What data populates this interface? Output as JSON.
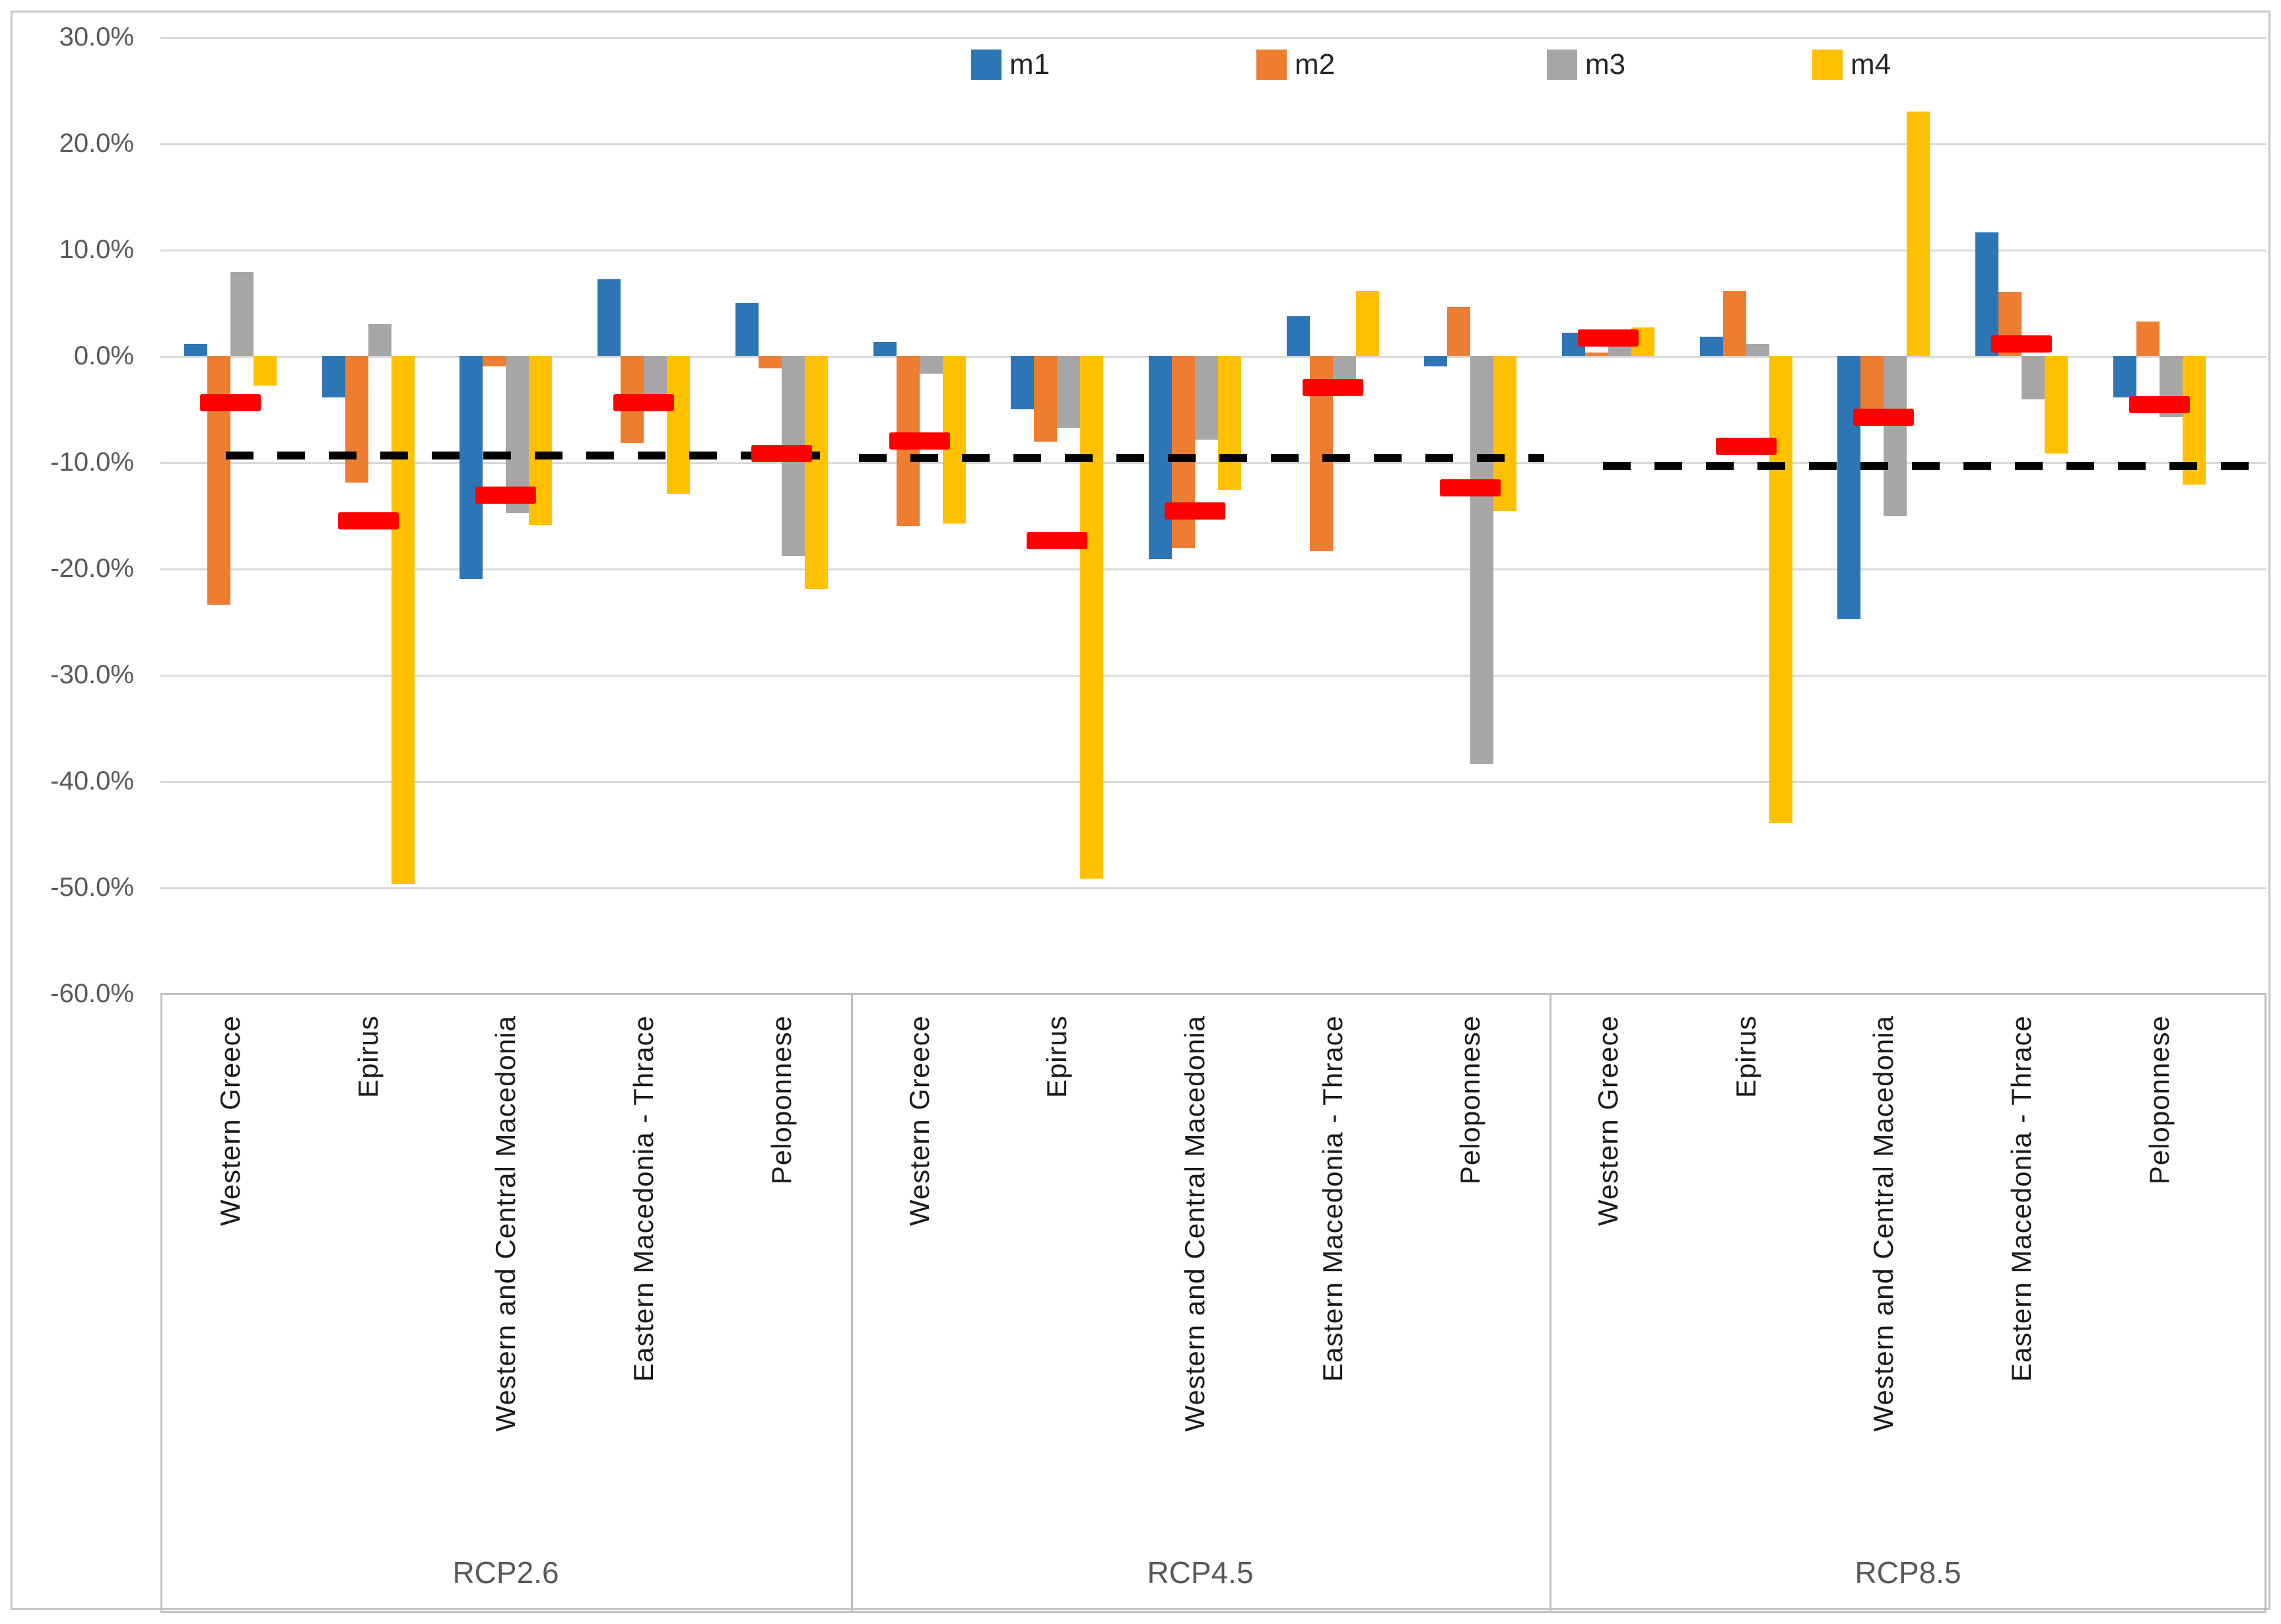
{
  "chart_data": {
    "type": "bar",
    "title": "",
    "xlabel": "",
    "ylabel": "",
    "grid": true,
    "legend_position": "top",
    "y_axis": {
      "min": -60,
      "max": 30,
      "tick_step": 10,
      "tick_labels": [
        "30.0%",
        "20.0%",
        "10.0%",
        "0.0%",
        "-10.0%",
        "-20.0%",
        "-30.0%",
        "-40.0%",
        "-50.0%",
        "-60.0%"
      ]
    },
    "series_names": [
      "m1",
      "m2",
      "m3",
      "m4"
    ],
    "colors": {
      "m1": "#2E75B6",
      "m2": "#ED7D31",
      "m3": "#A6A6A6",
      "m4": "#FFC000",
      "marker": "#FF0000",
      "dashed_line": "#000000",
      "gridline": "#D9D9D9",
      "box_border": "#BFBFBF",
      "axis_text": "#595959",
      "category_text": "#1A1A1A"
    },
    "units": "percent",
    "panels": [
      {
        "label": "RCP2.6",
        "dashed_line_value": -9.4,
        "groups": [
          {
            "region": "Western Greece",
            "values": {
              "m1": 1.1,
              "m2": -23.4,
              "m3": 7.9,
              "m4": -2.8
            },
            "marker": -4.4
          },
          {
            "region": "Epirus",
            "values": {
              "m1": -3.9,
              "m2": -11.9,
              "m3": 3.0,
              "m4": -49.7
            },
            "marker": -15.5
          },
          {
            "region": "Western and Central Macedonia",
            "values": {
              "m1": -21.0,
              "m2": -1.0,
              "m3": -14.8,
              "m4": -15.9
            },
            "marker": -13.1
          },
          {
            "region": "Eastern Macedonia - Thrace",
            "values": {
              "m1": 7.2,
              "m2": -8.2,
              "m3": -3.6,
              "m4": -13.0
            },
            "marker": -4.4
          },
          {
            "region": "Peloponnese",
            "values": {
              "m1": 5.0,
              "m2": -1.2,
              "m3": -18.8,
              "m4": -21.9
            },
            "marker": -9.2
          }
        ]
      },
      {
        "label": "RCP4.5",
        "dashed_line_value": -9.6,
        "groups": [
          {
            "region": "Western Greece",
            "values": {
              "m1": 1.3,
              "m2": -16.0,
              "m3": -1.7,
              "m4": -15.8
            },
            "marker": -8.0
          },
          {
            "region": "Epirus",
            "values": {
              "m1": -5.0,
              "m2": -8.1,
              "m3": -6.8,
              "m4": -49.2
            },
            "marker": -17.4
          },
          {
            "region": "Western and Central Macedonia",
            "values": {
              "m1": -19.1,
              "m2": -18.1,
              "m3": -7.9,
              "m4": -12.6
            },
            "marker": -14.6
          },
          {
            "region": "Eastern Macedonia - Thrace",
            "values": {
              "m1": 3.7,
              "m2": -18.4,
              "m3": -2.2,
              "m4": 6.1
            },
            "marker": -3.0
          },
          {
            "region": "Peloponnese",
            "values": {
              "m1": -1.0,
              "m2": 4.6,
              "m3": -38.4,
              "m4": -14.6
            },
            "marker": -12.4
          }
        ]
      },
      {
        "label": "RCP8.5",
        "dashed_line_value": -10.4,
        "groups": [
          {
            "region": "Western Greece",
            "values": {
              "m1": 2.2,
              "m2": 0.3,
              "m3": 1.0,
              "m4": 2.7
            },
            "marker": 1.7
          },
          {
            "region": "Epirus",
            "values": {
              "m1": 1.8,
              "m2": 6.1,
              "m3": 1.1,
              "m4": -44.0
            },
            "marker": -8.5
          },
          {
            "region": "Western and Central Macedonia",
            "values": {
              "m1": -24.8,
              "m2": -5.3,
              "m3": -15.1,
              "m4": 23.0
            },
            "marker": -5.8
          },
          {
            "region": "Eastern Macedonia - Thrace",
            "values": {
              "m1": 11.6,
              "m2": 6.0,
              "m3": -4.1,
              "m4": -9.2
            },
            "marker": 1.1
          },
          {
            "region": "Peloponnese",
            "values": {
              "m1": -3.9,
              "m2": 3.2,
              "m3": -5.8,
              "m4": -12.1
            },
            "marker": -4.6
          }
        ]
      }
    ]
  }
}
